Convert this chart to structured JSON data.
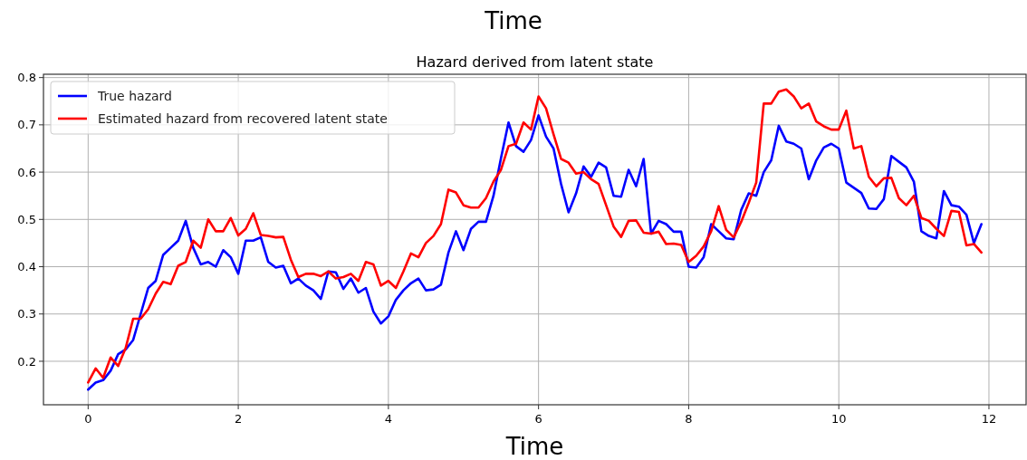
{
  "chart_data": {
    "type": "line",
    "title": "Hazard derived from latent state",
    "xlabel": "Time",
    "annotations": [
      "Time"
    ],
    "x": [
      0,
      0.1,
      0.2,
      0.3,
      0.4,
      0.5,
      0.6,
      0.7,
      0.8,
      0.9,
      1,
      1.1,
      1.2,
      1.3,
      1.4,
      1.5,
      1.6,
      1.7,
      1.8,
      1.9,
      2,
      2.1,
      2.2,
      2.3,
      2.4,
      2.5,
      2.6,
      2.7,
      2.8,
      2.9,
      3,
      3.1,
      3.2,
      3.3,
      3.4,
      3.5,
      3.6,
      3.7,
      3.8,
      3.9,
      4,
      4.1,
      4.2,
      4.3,
      4.4,
      4.5,
      4.6,
      4.7,
      4.8,
      4.9,
      5,
      5.1,
      5.2,
      5.3,
      5.4,
      5.5,
      5.6,
      5.7,
      5.8,
      5.9,
      6,
      6.1,
      6.2,
      6.3,
      6.4,
      6.5,
      6.6,
      6.7,
      6.8,
      6.9,
      7,
      7.1,
      7.2,
      7.3,
      7.4,
      7.5,
      7.6,
      7.7,
      7.8,
      7.9,
      8,
      8.1,
      8.2,
      8.3,
      8.4,
      8.5,
      8.6,
      8.7,
      8.8,
      8.9,
      9,
      9.1,
      9.2,
      9.3,
      9.4,
      9.5,
      9.6,
      9.7,
      9.8,
      9.9,
      10,
      10.1,
      10.2,
      10.3,
      10.4,
      10.5,
      10.6,
      10.7,
      10.8,
      10.9,
      11,
      11.1,
      11.2,
      11.3,
      11.4,
      11.5,
      11.6,
      11.7,
      11.8,
      11.9
    ],
    "series": [
      {
        "name": "True hazard",
        "color": "#0000ff",
        "values": [
          0.14,
          0.155,
          0.16,
          0.18,
          0.215,
          0.225,
          0.245,
          0.3,
          0.355,
          0.37,
          0.425,
          0.44,
          0.455,
          0.497,
          0.44,
          0.405,
          0.41,
          0.4,
          0.435,
          0.42,
          0.385,
          0.455,
          0.455,
          0.462,
          0.41,
          0.398,
          0.402,
          0.365,
          0.375,
          0.36,
          0.35,
          0.332,
          0.39,
          0.388,
          0.353,
          0.375,
          0.345,
          0.355,
          0.305,
          0.28,
          0.295,
          0.33,
          0.35,
          0.365,
          0.375,
          0.35,
          0.352,
          0.362,
          0.43,
          0.475,
          0.435,
          0.48,
          0.495,
          0.495,
          0.55,
          0.63,
          0.705,
          0.655,
          0.643,
          0.668,
          0.72,
          0.675,
          0.65,
          0.575,
          0.515,
          0.555,
          0.612,
          0.59,
          0.62,
          0.61,
          0.55,
          0.548,
          0.605,
          0.57,
          0.628,
          0.47,
          0.497,
          0.49,
          0.474,
          0.474,
          0.4,
          0.398,
          0.42,
          0.49,
          0.475,
          0.46,
          0.458,
          0.52,
          0.555,
          0.55,
          0.6,
          0.625,
          0.698,
          0.665,
          0.66,
          0.65,
          0.585,
          0.625,
          0.652,
          0.66,
          0.65,
          0.578,
          0.567,
          0.556,
          0.523,
          0.522,
          0.543,
          0.634,
          0.622,
          0.61,
          0.58,
          0.475,
          0.465,
          0.46,
          0.56,
          0.53,
          0.527,
          0.51,
          0.45,
          0.49
        ]
      },
      {
        "name": "Estimated hazard from recovered latent state",
        "color": "#ff0000",
        "values": [
          0.155,
          0.185,
          0.165,
          0.208,
          0.19,
          0.228,
          0.29,
          0.29,
          0.31,
          0.343,
          0.368,
          0.363,
          0.402,
          0.41,
          0.455,
          0.44,
          0.5,
          0.475,
          0.475,
          0.503,
          0.466,
          0.48,
          0.513,
          0.467,
          0.465,
          0.462,
          0.463,
          0.415,
          0.378,
          0.385,
          0.385,
          0.38,
          0.39,
          0.375,
          0.378,
          0.385,
          0.37,
          0.41,
          0.405,
          0.36,
          0.37,
          0.355,
          0.39,
          0.428,
          0.42,
          0.45,
          0.465,
          0.49,
          0.563,
          0.557,
          0.53,
          0.525,
          0.525,
          0.545,
          0.58,
          0.605,
          0.655,
          0.66,
          0.705,
          0.69,
          0.76,
          0.735,
          0.68,
          0.628,
          0.62,
          0.597,
          0.6,
          0.585,
          0.575,
          0.53,
          0.485,
          0.463,
          0.497,
          0.498,
          0.472,
          0.47,
          0.474,
          0.448,
          0.449,
          0.446,
          0.41,
          0.423,
          0.443,
          0.475,
          0.528,
          0.478,
          0.462,
          0.495,
          0.535,
          0.578,
          0.745,
          0.745,
          0.77,
          0.775,
          0.76,
          0.735,
          0.745,
          0.707,
          0.697,
          0.69,
          0.69,
          0.73,
          0.65,
          0.655,
          0.59,
          0.57,
          0.587,
          0.588,
          0.545,
          0.53,
          0.55,
          0.503,
          0.497,
          0.48,
          0.465,
          0.518,
          0.516,
          0.445,
          0.448,
          0.43
        ]
      }
    ],
    "xlim": [
      -0.595,
      12.495
    ],
    "ylim": [
      0.108,
      0.807
    ],
    "xticks": [
      0,
      2,
      4,
      6,
      8,
      10,
      12
    ],
    "yticks": [
      0.2,
      0.3,
      0.4,
      0.5,
      0.6,
      0.7,
      0.8
    ],
    "grid": true,
    "legend": "top left",
    "line_style": "solid",
    "marker": "none"
  }
}
